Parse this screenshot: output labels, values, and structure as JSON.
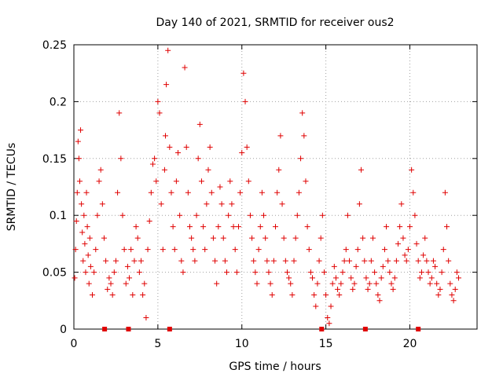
{
  "chart_data": {
    "type": "scatter",
    "title": "Day 140 of 2021, SRMTID for receiver ous2",
    "xlabel": "GPS time / hours",
    "ylabel": "SRMTID / TECUs",
    "xlim": [
      0,
      24
    ],
    "ylim": [
      0,
      0.25
    ],
    "xticks": [
      0,
      5,
      10,
      15,
      20
    ],
    "xtick_labels": [
      "0",
      "5",
      "10",
      "15",
      "20"
    ],
    "yticks": [
      0,
      0.05,
      0.1,
      0.15,
      0.2,
      0.25
    ],
    "ytick_labels": [
      "0",
      "0.05",
      "0.1",
      "0.15",
      "0.2",
      "0.25"
    ],
    "grid": true,
    "marker": "+",
    "color": "#e00000",
    "gap_marks_x": [
      1.83,
      3.25,
      5.7,
      14.75,
      17.35,
      20.5
    ],
    "series": [
      {
        "name": "SRMTID",
        "x": [
          0.05,
          0.1,
          0.15,
          0.2,
          0.25,
          0.3,
          0.35,
          0.4,
          0.45,
          0.5,
          0.55,
          0.6,
          0.65,
          0.7,
          0.75,
          0.8,
          0.85,
          0.9,
          0.95,
          1.0,
          1.1,
          1.2,
          1.3,
          1.4,
          1.5,
          1.6,
          1.7,
          1.8,
          1.9,
          2.0,
          2.1,
          2.2,
          2.3,
          2.4,
          2.5,
          2.6,
          2.7,
          2.8,
          2.9,
          3.0,
          3.1,
          3.2,
          3.3,
          3.4,
          3.5,
          3.6,
          3.7,
          3.8,
          3.9,
          4.0,
          4.1,
          4.2,
          4.3,
          4.4,
          4.5,
          4.6,
          4.7,
          4.8,
          4.9,
          5.0,
          5.1,
          5.2,
          5.3,
          5.4,
          5.45,
          5.5,
          5.6,
          5.7,
          5.8,
          5.9,
          6.0,
          6.1,
          6.2,
          6.3,
          6.4,
          6.5,
          6.6,
          6.7,
          6.8,
          6.9,
          7.0,
          7.1,
          7.2,
          7.3,
          7.4,
          7.5,
          7.6,
          7.7,
          7.8,
          7.9,
          8.0,
          8.1,
          8.2,
          8.3,
          8.4,
          8.5,
          8.6,
          8.7,
          8.8,
          8.9,
          9.0,
          9.1,
          9.2,
          9.3,
          9.4,
          9.5,
          9.6,
          9.7,
          9.8,
          9.9,
          10.0,
          10.1,
          10.2,
          10.3,
          10.4,
          10.5,
          10.6,
          10.7,
          10.8,
          10.9,
          11.0,
          11.1,
          11.2,
          11.3,
          11.4,
          11.5,
          11.6,
          11.7,
          11.8,
          11.9,
          12.0,
          12.1,
          12.2,
          12.3,
          12.4,
          12.5,
          12.6,
          12.7,
          12.8,
          12.9,
          13.0,
          13.1,
          13.2,
          13.3,
          13.4,
          13.5,
          13.6,
          13.7,
          13.8,
          13.9,
          14.0,
          14.1,
          14.2,
          14.3,
          14.4,
          14.5,
          14.6,
          14.7,
          14.8,
          14.9,
          15.0,
          15.1,
          15.2,
          15.3,
          15.4,
          15.5,
          15.6,
          15.7,
          15.8,
          15.9,
          16.0,
          16.1,
          16.2,
          16.3,
          16.4,
          16.5,
          16.6,
          16.7,
          16.8,
          16.9,
          17.0,
          17.1,
          17.2,
          17.3,
          17.4,
          17.5,
          17.6,
          17.7,
          17.8,
          17.9,
          18.0,
          18.1,
          18.2,
          18.3,
          18.4,
          18.5,
          18.6,
          18.7,
          18.8,
          18.9,
          19.0,
          19.1,
          19.2,
          19.3,
          19.4,
          19.5,
          19.6,
          19.7,
          19.8,
          19.9,
          20.0,
          20.1,
          20.2,
          20.3,
          20.4,
          20.5,
          20.6,
          20.7,
          20.8,
          20.9,
          21.0,
          21.1,
          21.2,
          21.3,
          21.4,
          21.5,
          21.6,
          21.7,
          21.8,
          21.9,
          22.0,
          22.1,
          22.2,
          22.3,
          22.4,
          22.5,
          22.6,
          22.7,
          22.8,
          22.9
        ],
        "y": [
          0.045,
          0.07,
          0.095,
          0.12,
          0.165,
          0.15,
          0.13,
          0.175,
          0.11,
          0.085,
          0.06,
          0.1,
          0.075,
          0.05,
          0.12,
          0.09,
          0.065,
          0.04,
          0.08,
          0.055,
          0.03,
          0.05,
          0.07,
          0.1,
          0.13,
          0.14,
          0.11,
          0.08,
          0.06,
          0.035,
          0.045,
          0.04,
          0.03,
          0.05,
          0.06,
          0.12,
          0.19,
          0.15,
          0.1,
          0.07,
          0.04,
          0.055,
          0.045,
          0.07,
          0.03,
          0.06,
          0.09,
          0.08,
          0.05,
          0.06,
          0.03,
          0.04,
          0.01,
          0.07,
          0.095,
          0.12,
          0.145,
          0.15,
          0.13,
          0.2,
          0.19,
          0.11,
          0.07,
          0.14,
          0.17,
          0.215,
          0.245,
          0.16,
          0.12,
          0.09,
          0.07,
          0.13,
          0.155,
          0.1,
          0.06,
          0.05,
          0.23,
          0.16,
          0.12,
          0.09,
          0.08,
          0.07,
          0.06,
          0.1,
          0.15,
          0.18,
          0.13,
          0.09,
          0.07,
          0.11,
          0.14,
          0.16,
          0.12,
          0.08,
          0.06,
          0.04,
          0.09,
          0.125,
          0.11,
          0.08,
          0.06,
          0.05,
          0.1,
          0.13,
          0.11,
          0.09,
          0.07,
          0.05,
          0.09,
          0.12,
          0.155,
          0.225,
          0.2,
          0.16,
          0.13,
          0.1,
          0.08,
          0.06,
          0.05,
          0.04,
          0.07,
          0.09,
          0.12,
          0.1,
          0.08,
          0.06,
          0.05,
          0.04,
          0.03,
          0.06,
          0.09,
          0.12,
          0.14,
          0.17,
          0.11,
          0.08,
          0.06,
          0.05,
          0.045,
          0.04,
          0.03,
          0.06,
          0.08,
          0.1,
          0.12,
          0.15,
          0.19,
          0.17,
          0.13,
          0.09,
          0.07,
          0.05,
          0.045,
          0.03,
          0.02,
          0.04,
          0.06,
          0.08,
          0.1,
          0.05,
          0.03,
          0.01,
          0.005,
          0.02,
          0.04,
          0.055,
          0.045,
          0.035,
          0.03,
          0.04,
          0.05,
          0.06,
          0.07,
          0.1,
          0.06,
          0.045,
          0.035,
          0.04,
          0.055,
          0.07,
          0.11,
          0.14,
          0.08,
          0.06,
          0.045,
          0.035,
          0.04,
          0.06,
          0.08,
          0.05,
          0.04,
          0.03,
          0.025,
          0.045,
          0.055,
          0.07,
          0.09,
          0.06,
          0.05,
          0.04,
          0.035,
          0.045,
          0.06,
          0.075,
          0.09,
          0.11,
          0.08,
          0.065,
          0.06,
          0.07,
          0.09,
          0.14,
          0.12,
          0.1,
          0.075,
          0.06,
          0.045,
          0.05,
          0.065,
          0.08,
          0.06,
          0.05,
          0.04,
          0.045,
          0.06,
          0.055,
          0.04,
          0.03,
          0.035,
          0.05,
          0.07,
          0.12,
          0.09,
          0.06,
          0.04,
          0.03,
          0.025,
          0.035,
          0.05,
          0.045
        ]
      }
    ]
  }
}
